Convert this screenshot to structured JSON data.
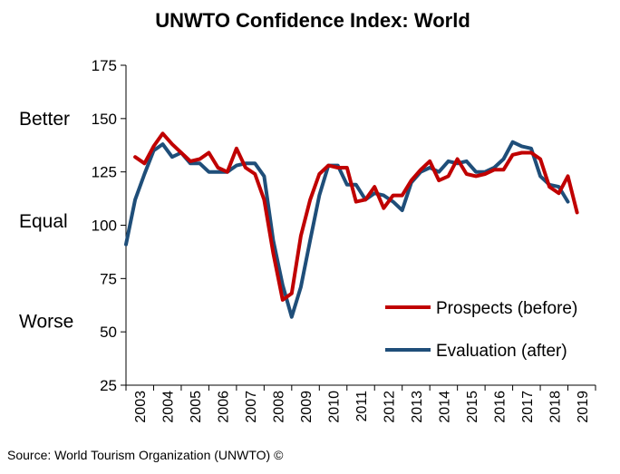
{
  "chart_data": {
    "type": "line",
    "title": "UNWTO Confidence Index: World",
    "xlabel": "",
    "ylabel": "",
    "ylim": [
      25,
      175
    ],
    "yticks": [
      175,
      150,
      125,
      100,
      75,
      50,
      25
    ],
    "xlim": [
      2003,
      2020
    ],
    "categories": [
      "2003",
      "2004",
      "2005",
      "2006",
      "2007",
      "2008",
      "2009",
      "2010",
      "2011",
      "2012",
      "2013",
      "2014",
      "2015",
      "2016",
      "2017",
      "2018",
      "2019"
    ],
    "side_labels": [
      {
        "text": "Better",
        "value": 150
      },
      {
        "text": "Equal",
        "value": 102
      },
      {
        "text": "Worse",
        "value": 55
      }
    ],
    "legend_position": "bottom-right",
    "grid": false,
    "series": [
      {
        "name": "Prospects (before)",
        "color": "#c00000",
        "x": [
          2003.33,
          2003.67,
          2004.0,
          2004.33,
          2004.67,
          2005.0,
          2005.33,
          2005.67,
          2006.0,
          2006.33,
          2006.67,
          2007.0,
          2007.33,
          2007.67,
          2008.0,
          2008.33,
          2008.67,
          2009.0,
          2009.33,
          2009.67,
          2010.0,
          2010.33,
          2010.67,
          2011.0,
          2011.33,
          2011.67,
          2012.0,
          2012.33,
          2012.67,
          2013.0,
          2013.33,
          2013.67,
          2014.0,
          2014.33,
          2014.67,
          2015.0,
          2015.33,
          2015.67,
          2016.0,
          2016.33,
          2016.67,
          2017.0,
          2017.33,
          2017.67,
          2018.0,
          2018.33,
          2018.67,
          2019.0,
          2019.33
        ],
        "values": [
          132,
          129,
          137,
          143,
          138,
          134,
          130,
          131,
          134,
          127,
          125,
          136,
          127,
          124,
          112,
          87,
          65,
          68,
          95,
          112,
          124,
          128,
          127,
          127,
          111,
          112,
          118,
          108,
          114,
          114,
          121,
          126,
          130,
          121,
          123,
          131,
          124,
          123,
          124,
          126,
          126,
          133,
          134,
          134,
          131,
          118,
          115,
          123,
          106
        ]
      },
      {
        "name": "Evaluation (after)",
        "color": "#1f4e79",
        "x": [
          2003.0,
          2003.33,
          2003.67,
          2004.0,
          2004.33,
          2004.67,
          2005.0,
          2005.33,
          2005.67,
          2006.0,
          2006.33,
          2006.67,
          2007.0,
          2007.33,
          2007.67,
          2008.0,
          2008.33,
          2008.67,
          2009.0,
          2009.33,
          2009.67,
          2010.0,
          2010.33,
          2010.67,
          2011.0,
          2011.33,
          2011.67,
          2012.0,
          2012.33,
          2012.67,
          2013.0,
          2013.33,
          2013.67,
          2014.0,
          2014.33,
          2014.67,
          2015.0,
          2015.33,
          2015.67,
          2016.0,
          2016.33,
          2016.67,
          2017.0,
          2017.33,
          2017.67,
          2018.0,
          2018.33,
          2018.67,
          2019.0
        ],
        "values": [
          91,
          112,
          124,
          135,
          138,
          132,
          134,
          129,
          129,
          125,
          125,
          125,
          128,
          129,
          129,
          123,
          93,
          72,
          57,
          71,
          93,
          114,
          128,
          128,
          119,
          119,
          112,
          115,
          114,
          111,
          107,
          120,
          125,
          127,
          125,
          130,
          129,
          130,
          125,
          125,
          127,
          131,
          139,
          137,
          136,
          123,
          119,
          118,
          111
        ]
      }
    ]
  },
  "source": "Source: World Tourism Organization (UNWTO) ©"
}
